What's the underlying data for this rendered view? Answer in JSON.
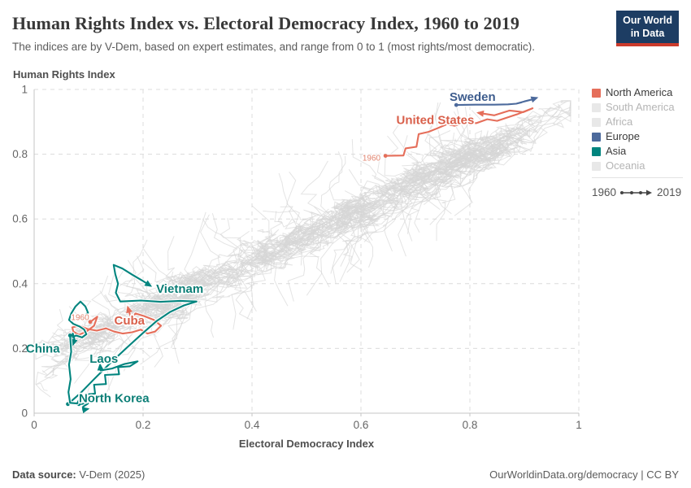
{
  "header": {
    "title": "Human Rights Index vs. Electoral Democracy Index, 1960 to 2019",
    "subtitle": "The indices are by V-Dem, based on expert estimates, and range from 0 to 1 (most rights/most democratic).",
    "logo": {
      "line1": "Our World",
      "line2": "in Data",
      "bg": "#1d3d63",
      "accent": "#cc3b2c"
    }
  },
  "chart_data": {
    "type": "connected-scatter",
    "title": "Human Rights Index vs. Electoral Democracy Index, 1960 to 2019",
    "x_axis": {
      "label": "Electoral Democracy Index",
      "range": [
        0,
        1
      ],
      "ticks": [
        0,
        0.2,
        0.4,
        0.6,
        0.8,
        1
      ],
      "tick_labels": [
        "0",
        "0.2",
        "0.4",
        "0.6",
        "0.8",
        "1"
      ]
    },
    "y_axis": {
      "label": "Human Rights Index",
      "range": [
        0,
        1
      ],
      "ticks": [
        0,
        0.2,
        0.4,
        0.6,
        0.8,
        1
      ],
      "tick_labels": [
        "0",
        "0.2",
        "0.4",
        "0.6",
        "0.8",
        "1"
      ]
    },
    "grid": true,
    "colors": {
      "grid": "#dcdcdc",
      "axis": "#c4c4c4",
      "tick_text": "#666666"
    },
    "series": [
      {
        "name": "Sweden",
        "continent": "Europe",
        "color": "#4c6a9c",
        "label_color": "#3d5c8d",
        "label": {
          "text": "Sweden",
          "x": 0.805,
          "y": 0.977,
          "anchor": "middle"
        },
        "points": [
          [
            0.775,
            0.952
          ],
          [
            0.81,
            0.953
          ],
          [
            0.845,
            0.953
          ],
          [
            0.87,
            0.954
          ],
          [
            0.885,
            0.956
          ],
          [
            0.895,
            0.96
          ],
          [
            0.887,
            0.957
          ],
          [
            0.9,
            0.963
          ],
          [
            0.912,
            0.968
          ],
          [
            0.923,
            0.974
          ]
        ]
      },
      {
        "name": "United States",
        "continent": "North America",
        "color": "#e56e5a",
        "label_color": "#d9604b",
        "label": {
          "text": "United States",
          "x": 0.808,
          "y": 0.906,
          "anchor": "end"
        },
        "year_annotation": {
          "text": "1960",
          "x": 0.636,
          "y": 0.789,
          "anchor": "end"
        },
        "points": [
          [
            0.645,
            0.795
          ],
          [
            0.678,
            0.796
          ],
          [
            0.682,
            0.818
          ],
          [
            0.702,
            0.823
          ],
          [
            0.706,
            0.862
          ],
          [
            0.724,
            0.869
          ],
          [
            0.74,
            0.88
          ],
          [
            0.758,
            0.893
          ],
          [
            0.772,
            0.888
          ],
          [
            0.793,
            0.9
          ],
          [
            0.812,
            0.896
          ],
          [
            0.832,
            0.908
          ],
          [
            0.85,
            0.903
          ],
          [
            0.868,
            0.913
          ],
          [
            0.888,
            0.924
          ],
          [
            0.915,
            0.942
          ],
          [
            0.898,
            0.93
          ],
          [
            0.873,
            0.935
          ],
          [
            0.845,
            0.92
          ],
          [
            0.815,
            0.928
          ]
        ]
      },
      {
        "name": "Cuba",
        "continent": "North America",
        "color": "#e56e5a",
        "label_color": "#d9604b",
        "label": {
          "text": "Cuba",
          "x": 0.147,
          "y": 0.287,
          "anchor": "start"
        },
        "year_annotation": {
          "text": "1960",
          "x": 0.101,
          "y": 0.297,
          "anchor": "end"
        },
        "points": [
          [
            0.103,
            0.282
          ],
          [
            0.116,
            0.298
          ],
          [
            0.11,
            0.27
          ],
          [
            0.096,
            0.252
          ],
          [
            0.082,
            0.242
          ],
          [
            0.072,
            0.252
          ],
          [
            0.07,
            0.265
          ],
          [
            0.083,
            0.27
          ],
          [
            0.098,
            0.26
          ],
          [
            0.115,
            0.255
          ],
          [
            0.132,
            0.262
          ],
          [
            0.147,
            0.252
          ],
          [
            0.163,
            0.246
          ],
          [
            0.18,
            0.25
          ],
          [
            0.196,
            0.258
          ],
          [
            0.208,
            0.246
          ],
          [
            0.222,
            0.252
          ],
          [
            0.233,
            0.27
          ],
          [
            0.22,
            0.288
          ],
          [
            0.202,
            0.3
          ],
          [
            0.186,
            0.308
          ],
          [
            0.178,
            0.292
          ],
          [
            0.172,
            0.328
          ]
        ]
      },
      {
        "name": "Vietnam",
        "continent": "Asia",
        "color": "#00847e",
        "label_color": "#0b7e76",
        "label": {
          "text": "Vietnam",
          "x": 0.224,
          "y": 0.384,
          "anchor": "start"
        },
        "points": [
          [
            0.062,
            0.028
          ],
          [
            0.085,
            0.062
          ],
          [
            0.11,
            0.105
          ],
          [
            0.14,
            0.155
          ],
          [
            0.172,
            0.205
          ],
          [
            0.2,
            0.248
          ],
          [
            0.225,
            0.285
          ],
          [
            0.25,
            0.313
          ],
          [
            0.275,
            0.333
          ],
          [
            0.298,
            0.345
          ],
          [
            0.268,
            0.347
          ],
          [
            0.232,
            0.344
          ],
          [
            0.196,
            0.348
          ],
          [
            0.158,
            0.345
          ],
          [
            0.15,
            0.372
          ],
          [
            0.154,
            0.4
          ],
          [
            0.149,
            0.43
          ],
          [
            0.146,
            0.458
          ],
          [
            0.162,
            0.447
          ],
          [
            0.18,
            0.428
          ],
          [
            0.198,
            0.41
          ],
          [
            0.214,
            0.393
          ]
        ]
      },
      {
        "name": "China",
        "continent": "Asia",
        "color": "#00847e",
        "label_color": "#0b7e76",
        "label": {
          "text": "China",
          "x": 0.016,
          "y": 0.2,
          "anchor": "middle"
        },
        "points": [
          [
            0.088,
            0.296
          ],
          [
            0.099,
            0.31
          ],
          [
            0.094,
            0.33
          ],
          [
            0.085,
            0.345
          ],
          [
            0.076,
            0.33
          ],
          [
            0.068,
            0.308
          ],
          [
            0.064,
            0.288
          ],
          [
            0.072,
            0.276
          ],
          [
            0.083,
            0.268
          ],
          [
            0.092,
            0.258
          ],
          [
            0.096,
            0.244
          ],
          [
            0.088,
            0.234
          ],
          [
            0.077,
            0.24
          ],
          [
            0.068,
            0.233
          ],
          [
            0.071,
            0.246
          ],
          [
            0.074,
            0.228
          ],
          [
            0.071,
            0.211
          ]
        ]
      },
      {
        "name": "Laos",
        "continent": "Asia",
        "color": "#00847e",
        "label_color": "#0b7e76",
        "label": {
          "text": "Laos",
          "x": 0.128,
          "y": 0.168,
          "anchor": "middle"
        },
        "points": [
          [
            0.082,
            0.028
          ],
          [
            0.096,
            0.03
          ],
          [
            0.094,
            0.058
          ],
          [
            0.112,
            0.06
          ],
          [
            0.11,
            0.088
          ],
          [
            0.132,
            0.09
          ],
          [
            0.13,
            0.118
          ],
          [
            0.156,
            0.12
          ],
          [
            0.154,
            0.142
          ],
          [
            0.176,
            0.145
          ],
          [
            0.19,
            0.16
          ],
          [
            0.166,
            0.152
          ],
          [
            0.143,
            0.138
          ],
          [
            0.122,
            0.132
          ],
          [
            0.121,
            0.15
          ]
        ]
      },
      {
        "name": "North Korea",
        "continent": "Asia",
        "color": "#00847e",
        "label_color": "#0b7e76",
        "label": {
          "text": "North Korea",
          "x": 0.082,
          "y": 0.047,
          "anchor": "start"
        },
        "points": [
          [
            0.066,
            0.24
          ],
          [
            0.068,
            0.19
          ],
          [
            0.064,
            0.15
          ],
          [
            0.067,
            0.105
          ],
          [
            0.063,
            0.065
          ],
          [
            0.066,
            0.032
          ],
          [
            0.079,
            0.03
          ],
          [
            0.085,
            0.05
          ],
          [
            0.094,
            0.047
          ],
          [
            0.099,
            0.03
          ],
          [
            0.09,
            0.02
          ],
          [
            0.09,
            0.01
          ],
          [
            0.099,
            0.013
          ]
        ]
      }
    ],
    "background_countries": {
      "note": "unhighlighted country trajectories drawn as decorative gray tangle",
      "count": 165,
      "seed": 7,
      "color": "#d5d5d5",
      "opacity": 0.65
    }
  },
  "legend": {
    "items": [
      {
        "label": "North America",
        "color": "#e56e5a",
        "active": true
      },
      {
        "label": "South America",
        "color": "#e8e8e8",
        "active": false
      },
      {
        "label": "Africa",
        "color": "#e8e8e8",
        "active": false
      },
      {
        "label": "Europe",
        "color": "#4c6a9c",
        "active": true
      },
      {
        "label": "Asia",
        "color": "#00847e",
        "active": true
      },
      {
        "label": "Oceania",
        "color": "#e8e8e8",
        "active": false
      }
    ],
    "time": {
      "start": "1960",
      "end": "2019"
    }
  },
  "footer": {
    "source_label": "Data source:",
    "source_value": " V-Dem (2025)",
    "right_text": "OurWorldinData.org/democracy | CC BY"
  }
}
